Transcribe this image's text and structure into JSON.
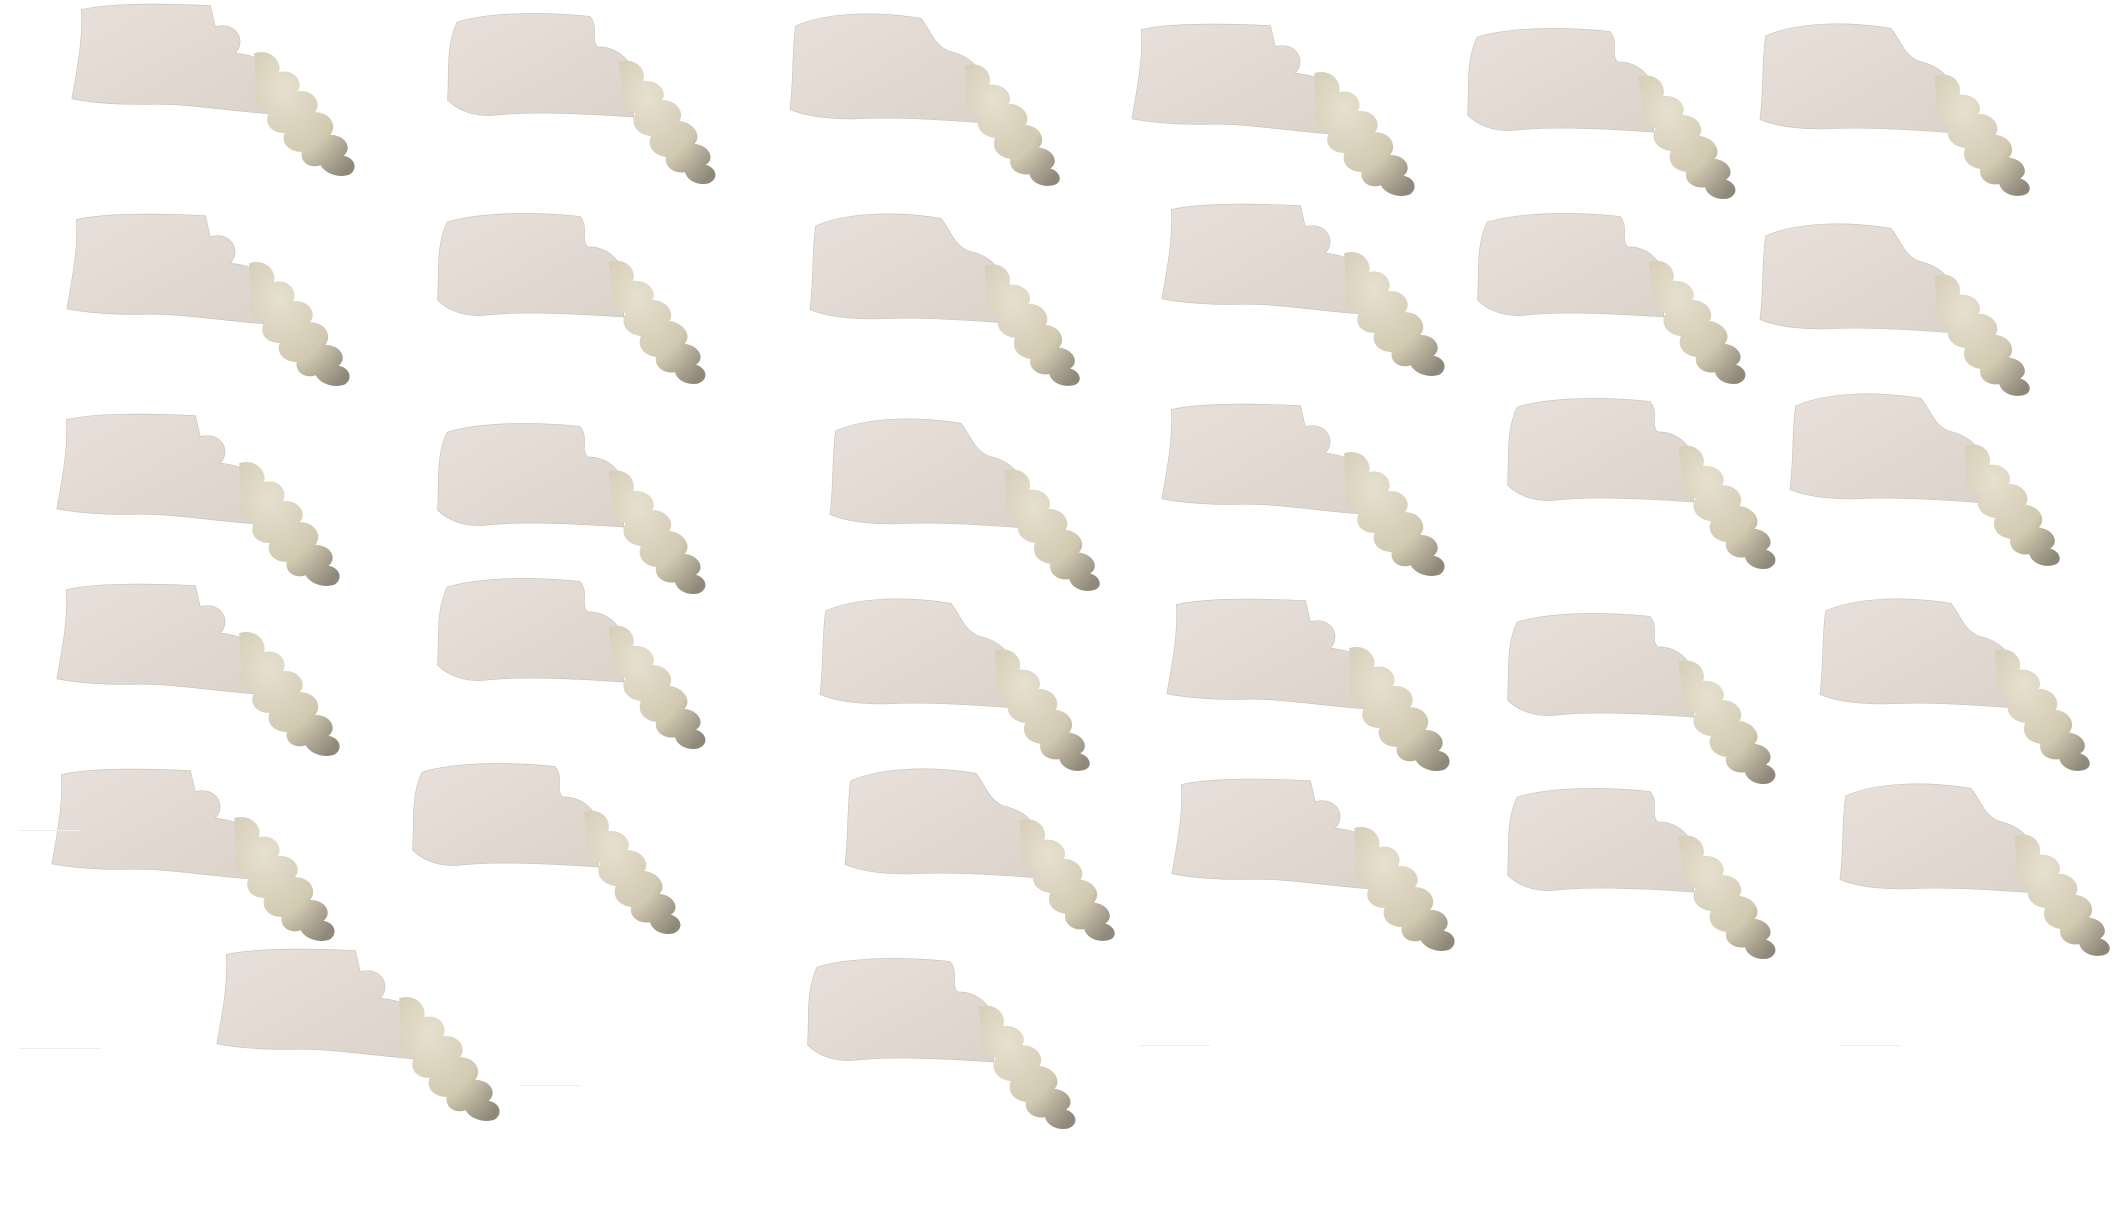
{
  "image": {
    "background": "#ffffff",
    "colors": {
      "body_light": "#e8e0da",
      "body_mid": "#dcd3cb",
      "tail_light": "#e6e0cf",
      "tail_mid": "#d2c9b1",
      "tail_shadow": "#8f887a",
      "edge": "#c9c0b6"
    }
  },
  "shapes": [
    {
      "id": 1,
      "variant": "a"
    },
    {
      "id": 2,
      "variant": "b"
    },
    {
      "id": 3,
      "variant": "c"
    },
    {
      "id": 4,
      "variant": "a"
    },
    {
      "id": 5,
      "variant": "b"
    },
    {
      "id": 6,
      "variant": "c"
    },
    {
      "id": 7,
      "variant": "a"
    },
    {
      "id": 8,
      "variant": "b"
    },
    {
      "id": 9,
      "variant": "c"
    },
    {
      "id": 10,
      "variant": "a"
    },
    {
      "id": 11,
      "variant": "b"
    },
    {
      "id": 12,
      "variant": "c"
    },
    {
      "id": 13,
      "variant": "a"
    },
    {
      "id": 14,
      "variant": "b"
    },
    {
      "id": 15,
      "variant": "c"
    },
    {
      "id": 16,
      "variant": "a"
    },
    {
      "id": 17,
      "variant": "b"
    },
    {
      "id": 18,
      "variant": "c"
    },
    {
      "id": 19,
      "variant": "a"
    },
    {
      "id": 20,
      "variant": "b"
    },
    {
      "id": 21,
      "variant": "c"
    },
    {
      "id": 22,
      "variant": "a"
    },
    {
      "id": 23,
      "variant": "b"
    },
    {
      "id": 24,
      "variant": "c"
    },
    {
      "id": 25,
      "variant": "a"
    },
    {
      "id": 26,
      "variant": "b"
    },
    {
      "id": 27,
      "variant": "c"
    },
    {
      "id": 28,
      "variant": "a"
    },
    {
      "id": 29,
      "variant": "b"
    },
    {
      "id": 30,
      "variant": "c"
    },
    {
      "id": 31,
      "variant": "a"
    },
    {
      "id": 32,
      "variant": "b"
    }
  ]
}
